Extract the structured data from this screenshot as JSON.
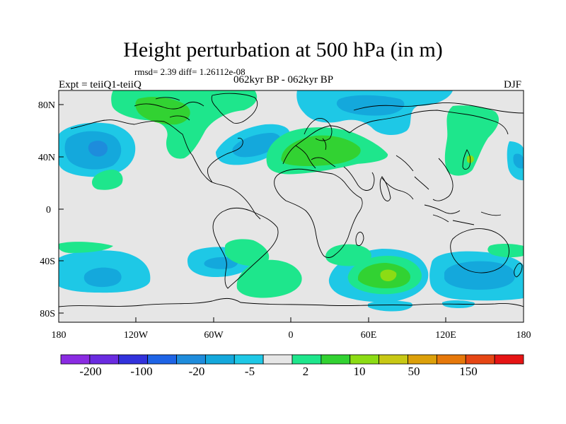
{
  "title": "Height perturbation at 500 hPa (in m)",
  "stats": "rmsd= 2.39 diff= 1.26112e-08",
  "experiment": "Expt = teiiQ1-teiiQ",
  "period": "062kyr BP - 062kyr BP",
  "season": "DJF",
  "lat_ticks": [
    "80N",
    "40N",
    "0",
    "40S",
    "80S"
  ],
  "lon_ticks": [
    "180",
    "120W",
    "60W",
    "0",
    "60E",
    "120E",
    "180"
  ],
  "colorbar": {
    "labels": [
      "-200",
      "-100",
      "-20",
      "-5",
      "2",
      "10",
      "50",
      "150"
    ],
    "colors": [
      "#8a2be2",
      "#6a2be0",
      "#3232dc",
      "#1e64e6",
      "#1e8cdc",
      "#14a8dc",
      "#1ec8e6",
      "#e6e6e6",
      "#1ee68c",
      "#32d232",
      "#8cdc14",
      "#c8c814",
      "#dca00a",
      "#e6780a",
      "#e64614",
      "#e61414"
    ]
  },
  "chart_data": {
    "type": "heatmap",
    "field": "500 hPa height perturbation",
    "units": "m",
    "lon_range": [
      -180,
      180
    ],
    "lat_range": [
      -90,
      90
    ],
    "levels": [
      -200,
      -100,
      -20,
      -5,
      2,
      10,
      50,
      150
    ],
    "features": [
      {
        "sign": "negative",
        "region": "North Pacific / Alaska",
        "center": [
          -160,
          45
        ],
        "level": "-20"
      },
      {
        "sign": "negative",
        "region": "Eastern North America",
        "center": [
          -50,
          45
        ],
        "level": "-5"
      },
      {
        "sign": "negative",
        "region": "Arctic / Northern Siberia",
        "center": [
          70,
          75
        ],
        "level": "-5"
      },
      {
        "sign": "positive",
        "region": "Europe / Mediterranean",
        "center": [
          30,
          45
        ],
        "level": "10"
      },
      {
        "sign": "positive",
        "region": "Greenland / Canadian Arctic",
        "center": [
          -90,
          75
        ],
        "level": "10"
      },
      {
        "sign": "positive",
        "region": "East Asia / Japan",
        "center": [
          120,
          45
        ],
        "level": "2"
      },
      {
        "sign": "negative",
        "region": "South Pacific",
        "center": [
          -160,
          -50
        ],
        "level": "-5"
      },
      {
        "sign": "negative",
        "region": "South America / SE Pacific",
        "center": [
          -70,
          -45
        ],
        "level": "-5"
      },
      {
        "sign": "positive",
        "region": "South Atlantic",
        "center": [
          -10,
          -55
        ],
        "level": "2"
      },
      {
        "sign": "positive",
        "region": "Southern Indian Ocean",
        "center": [
          75,
          -55
        ],
        "level": "10"
      },
      {
        "sign": "negative",
        "region": "Southern Ocean south of Australia",
        "center": [
          135,
          -55
        ],
        "level": "-5"
      }
    ]
  }
}
